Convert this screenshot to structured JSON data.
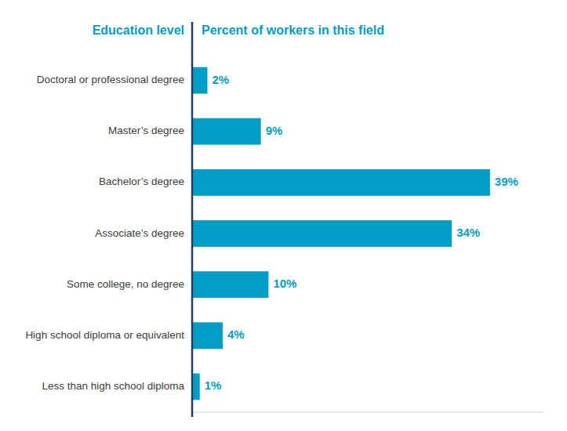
{
  "chart_data": {
    "type": "bar",
    "orientation": "horizontal",
    "y_label": "Education level",
    "x_label": "Percent of workers in this field",
    "categories": [
      "Doctoral or professional degree",
      "Master’s degree",
      "Bachelor’s degree",
      "Associate’s degree",
      "Some college, no degree",
      "High school diploma or equivalent",
      "Less than high school diploma"
    ],
    "values": [
      2,
      9,
      39,
      34,
      10,
      4,
      1
    ],
    "value_labels": [
      "2%",
      "9%",
      "39%",
      "34%",
      "10%",
      "4%",
      "1%"
    ],
    "color": "#009DC4",
    "xlim": [
      0,
      46
    ],
    "data_labels": true,
    "tick_labels": "y",
    "grid": false
  }
}
